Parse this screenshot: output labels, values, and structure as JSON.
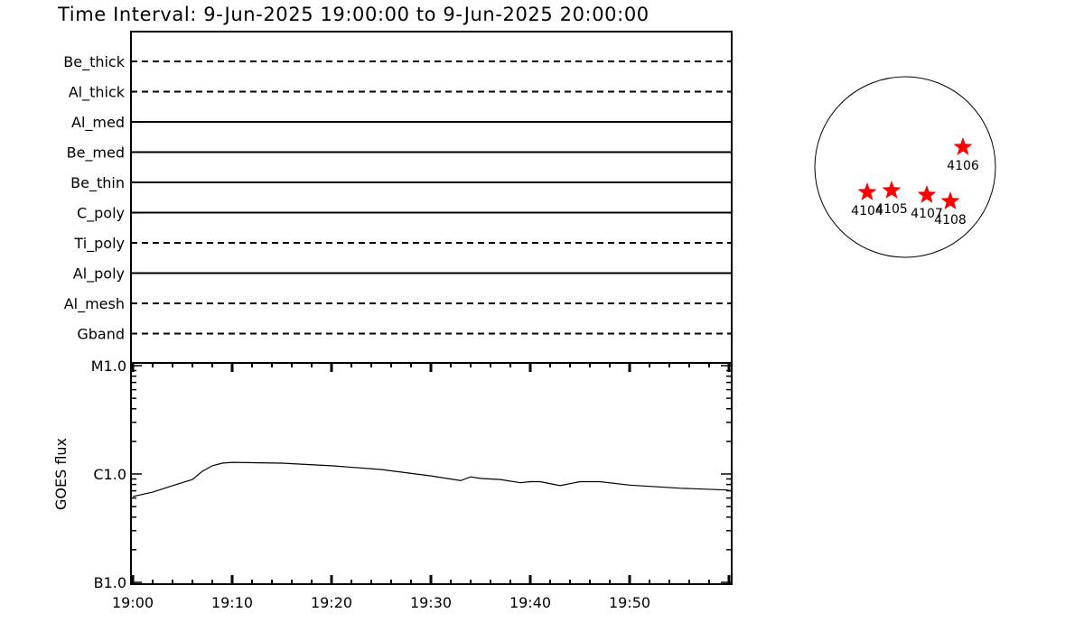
{
  "title": "Time Interval:  9-Jun-2025 19:00:00 to  9-Jun-2025 20:00:00",
  "filters": [
    {
      "name": "Be_thick",
      "style": "dashed"
    },
    {
      "name": "Al_thick",
      "style": "dashed"
    },
    {
      "name": "Al_med",
      "style": "solid"
    },
    {
      "name": "Be_med",
      "style": "solid"
    },
    {
      "name": "Be_thin",
      "style": "solid"
    },
    {
      "name": "C_poly",
      "style": "solid"
    },
    {
      "name": "Ti_poly",
      "style": "dashed"
    },
    {
      "name": "Al_poly",
      "style": "solid"
    },
    {
      "name": "Al_mesh",
      "style": "dashed"
    },
    {
      "name": "Gband",
      "style": "dashed"
    }
  ],
  "chart_data": {
    "type": "line",
    "ylabel": "GOES flux",
    "yscale": "log",
    "ylim": [
      1e-07,
      1e-05
    ],
    "ytick_labels": [
      "M1.0",
      "C1.0",
      "B1.0"
    ],
    "xlim_minutes": [
      0,
      60
    ],
    "xtick_labels": [
      "19:00",
      "19:10",
      "19:20",
      "19:30",
      "19:40",
      "19:50"
    ],
    "series": [
      {
        "x": [
          "19:00",
          "19:02",
          "19:04",
          "19:06",
          "19:07",
          "19:08",
          "19:09",
          "19:10",
          "19:15",
          "19:20",
          "19:25",
          "19:30",
          "19:33",
          "19:34",
          "19:35",
          "19:37",
          "19:39",
          "19:40",
          "19:41",
          "19:43",
          "19:45",
          "19:47",
          "19:50",
          "19:55",
          "20:00"
        ],
        "y": [
          6.2e-07,
          6.8e-07,
          7.8e-07,
          8.9e-07,
          1.06e-06,
          1.19e-06,
          1.26e-06,
          1.28e-06,
          1.26e-06,
          1.19e-06,
          1.1e-06,
          9.6e-07,
          8.7e-07,
          9.4e-07,
          9.1e-07,
          8.9e-07,
          8.3e-07,
          8.5e-07,
          8.5e-07,
          7.8e-07,
          8.5e-07,
          8.5e-07,
          7.9e-07,
          7.4e-07,
          7.1e-07
        ]
      }
    ]
  },
  "active_regions": [
    "4104",
    "4105",
    "4107",
    "4108",
    "4106"
  ],
  "colors": {
    "marker": "#ff0000",
    "axes": "#000000"
  }
}
